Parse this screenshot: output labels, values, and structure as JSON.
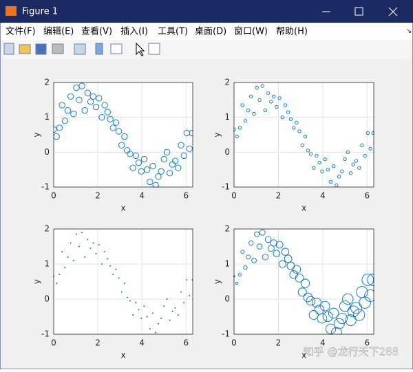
{
  "window": {
    "title": "Figure 1",
    "menu": [
      "文件(F)",
      "编辑(E)",
      "查看(V)",
      "插入(I)",
      "工具(T)",
      "桌面(D)",
      "窗口(W)",
      "帮助(H)"
    ]
  },
  "watermark": "知乎 @龙行天下288",
  "chart_data": [
    {
      "type": "scatter",
      "xlabel": "x",
      "ylabel": "y",
      "color": "#0072bd",
      "marker": "o",
      "marker_size": 36,
      "x": [
        0,
        0.13,
        0.26,
        0.38,
        0.51,
        0.64,
        0.77,
        0.9,
        1.03,
        1.15,
        1.28,
        1.41,
        1.54,
        1.67,
        1.79,
        1.92,
        2.05,
        2.18,
        2.31,
        2.44,
        2.56,
        2.69,
        2.82,
        2.95,
        3.08,
        3.21,
        3.33,
        3.46,
        3.59,
        3.72,
        3.85,
        3.97,
        4.1,
        4.23,
        4.36,
        4.49,
        4.62,
        4.74,
        4.87,
        5.0,
        5.13,
        5.26,
        5.38,
        5.51,
        5.64,
        5.77,
        5.9,
        6.03,
        6.15,
        6.28
      ],
      "y": [
        0.65,
        0.45,
        0.7,
        1.35,
        0.9,
        1.2,
        1.6,
        1.1,
        1.85,
        1.5,
        1.9,
        1.2,
        1.7,
        1.45,
        1.6,
        1.3,
        1.55,
        1.0,
        1.35,
        1.15,
        0.95,
        0.7,
        0.85,
        0.6,
        0.2,
        0.45,
        0.05,
        -0.05,
        -0.45,
        -0.1,
        -0.3,
        -0.55,
        -0.2,
        -0.5,
        -0.85,
        -0.4,
        -0.95,
        -0.7,
        -0.55,
        -0.2,
        0.0,
        -0.6,
        -0.35,
        -0.25,
        -0.45,
        0.2,
        -0.1,
        0.55,
        0.1,
        0.55
      ],
      "xlim": [
        0,
        6.3
      ],
      "xticks": [
        0,
        2,
        4,
        6
      ],
      "ylim": [
        -1,
        2
      ],
      "yticks": [
        -1,
        0,
        1,
        2
      ],
      "grid": true
    },
    {
      "type": "scatter",
      "xlabel": "x",
      "ylabel": "y",
      "color": "#0072bd",
      "marker": "o",
      "marker_size": 10,
      "x": [
        0,
        0.13,
        0.26,
        0.38,
        0.51,
        0.64,
        0.77,
        0.9,
        1.03,
        1.15,
        1.28,
        1.41,
        1.54,
        1.67,
        1.79,
        1.92,
        2.05,
        2.18,
        2.31,
        2.44,
        2.56,
        2.69,
        2.82,
        2.95,
        3.08,
        3.21,
        3.33,
        3.46,
        3.59,
        3.72,
        3.85,
        3.97,
        4.1,
        4.23,
        4.36,
        4.49,
        4.62,
        4.74,
        4.87,
        5.0,
        5.13,
        5.26,
        5.38,
        5.51,
        5.64,
        5.77,
        5.9,
        6.03,
        6.15,
        6.28
      ],
      "y": [
        0.65,
        0.45,
        0.7,
        1.35,
        0.9,
        1.2,
        1.6,
        1.1,
        1.85,
        1.5,
        1.9,
        1.2,
        1.7,
        1.45,
        1.6,
        1.3,
        1.55,
        1.0,
        1.35,
        1.15,
        0.95,
        0.7,
        0.85,
        0.6,
        0.2,
        0.45,
        0.05,
        -0.05,
        -0.45,
        -0.1,
        -0.3,
        -0.55,
        -0.2,
        -0.5,
        -0.85,
        -0.4,
        -0.95,
        -0.7,
        -0.55,
        -0.2,
        0.0,
        -0.6,
        -0.35,
        -0.25,
        -0.45,
        0.2,
        -0.1,
        0.55,
        0.1,
        0.55
      ],
      "xlim": [
        0,
        6.3
      ],
      "xticks": [
        0,
        2,
        4,
        6
      ],
      "ylim": [
        -1,
        2
      ],
      "yticks": [
        -1,
        0,
        1,
        2
      ],
      "grid": true
    },
    {
      "type": "scatter",
      "xlabel": "x",
      "ylabel": "y",
      "color": "#0072bd",
      "marker": ".",
      "marker_size": 2,
      "x": [
        0,
        0.13,
        0.26,
        0.38,
        0.51,
        0.64,
        0.77,
        0.9,
        1.03,
        1.15,
        1.28,
        1.41,
        1.54,
        1.67,
        1.79,
        1.92,
        2.05,
        2.18,
        2.31,
        2.44,
        2.56,
        2.69,
        2.82,
        2.95,
        3.08,
        3.21,
        3.33,
        3.46,
        3.59,
        3.72,
        3.85,
        3.97,
        4.1,
        4.23,
        4.36,
        4.49,
        4.62,
        4.74,
        4.87,
        5.0,
        5.13,
        5.26,
        5.38,
        5.51,
        5.64,
        5.77,
        5.9,
        6.03,
        6.15,
        6.28
      ],
      "y": [
        0.65,
        0.45,
        0.7,
        1.35,
        0.9,
        1.2,
        1.6,
        1.1,
        1.85,
        1.5,
        1.9,
        1.2,
        1.7,
        1.45,
        1.6,
        1.3,
        1.55,
        1.0,
        1.35,
        1.15,
        0.95,
        0.7,
        0.85,
        0.6,
        0.2,
        0.45,
        0.05,
        -0.05,
        -0.45,
        -0.1,
        -0.3,
        -0.55,
        -0.2,
        -0.5,
        -0.85,
        -0.4,
        -0.95,
        -0.7,
        -0.55,
        -0.2,
        0.0,
        -0.6,
        -0.35,
        -0.25,
        -0.45,
        0.2,
        -0.1,
        0.55,
        0.1,
        0.55
      ],
      "xlim": [
        0,
        6.3
      ],
      "xticks": [
        0,
        2,
        4,
        6
      ],
      "ylim": [
        -1,
        2
      ],
      "yticks": [
        -1,
        0,
        1,
        2
      ],
      "grid": true
    },
    {
      "type": "scatter",
      "xlabel": "x",
      "ylabel": "y",
      "color": "#0072bd",
      "marker": "o",
      "x": [
        0,
        0.13,
        0.26,
        0.38,
        0.51,
        0.64,
        0.77,
        0.9,
        1.03,
        1.15,
        1.28,
        1.41,
        1.54,
        1.67,
        1.79,
        1.92,
        2.05,
        2.18,
        2.31,
        2.44,
        2.56,
        2.69,
        2.82,
        2.95,
        3.08,
        3.21,
        3.33,
        3.46,
        3.59,
        3.72,
        3.85,
        3.97,
        4.1,
        4.23,
        4.36,
        4.49,
        4.62,
        4.74,
        4.87,
        5.0,
        5.13,
        5.26,
        5.38,
        5.51,
        5.64,
        5.77,
        5.9,
        6.03,
        6.15,
        6.28
      ],
      "y": [
        0.65,
        0.45,
        0.7,
        1.35,
        0.9,
        1.2,
        1.6,
        1.1,
        1.85,
        1.5,
        1.9,
        1.2,
        1.7,
        1.45,
        1.6,
        1.3,
        1.55,
        1.0,
        1.35,
        1.15,
        0.95,
        0.7,
        0.85,
        0.6,
        0.2,
        0.45,
        0.05,
        -0.05,
        -0.45,
        -0.1,
        -0.3,
        -0.55,
        -0.2,
        -0.5,
        -0.85,
        -0.4,
        -0.95,
        -0.7,
        -0.55,
        -0.2,
        0.0,
        -0.6,
        -0.35,
        -0.25,
        -0.45,
        0.2,
        -0.1,
        0.55,
        0.1,
        0.55
      ],
      "sizes": [
        3,
        6,
        9,
        12,
        15,
        18,
        21,
        24,
        27,
        30,
        33,
        36,
        39,
        42,
        45,
        48,
        51,
        54,
        57,
        60,
        63,
        66,
        69,
        72,
        75,
        78,
        81,
        84,
        87,
        90,
        93,
        96,
        99,
        102,
        105,
        108,
        111,
        114,
        117,
        120,
        123,
        126,
        129,
        132,
        135,
        138,
        141,
        144,
        147,
        150
      ],
      "xlim": [
        0,
        6.3
      ],
      "xticks": [
        0,
        2,
        4,
        6
      ],
      "ylim": [
        -1,
        2
      ],
      "yticks": [
        -1,
        0,
        1,
        2
      ],
      "grid": true
    }
  ]
}
